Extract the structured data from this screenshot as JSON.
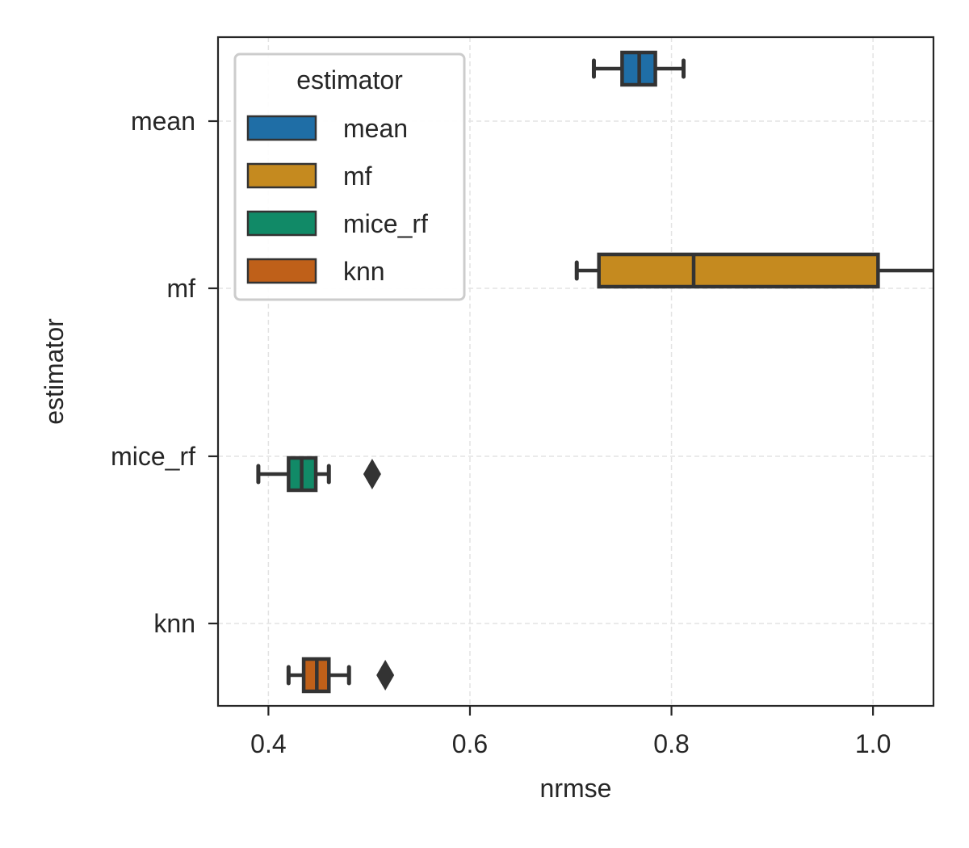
{
  "chart_data": {
    "type": "boxplot",
    "orientation": "horizontal",
    "xlabel": "nrmse",
    "ylabel": "estimator",
    "xlim": [
      0.35,
      1.06
    ],
    "xticks": [
      0.4,
      0.6,
      0.8,
      1.0
    ],
    "xtick_labels": [
      "0.4",
      "0.6",
      "0.8",
      "1.0"
    ],
    "categories": [
      "mean",
      "mf",
      "mice_rf",
      "knn"
    ],
    "grid": true,
    "legend": {
      "title": "estimator",
      "placement": "upper-left",
      "entries": [
        "mean",
        "mf",
        "mice_rf",
        "knn"
      ]
    },
    "series": [
      {
        "name": "mean",
        "category": "mean",
        "color": "#1f6ea6",
        "whislo": 0.723,
        "q1": 0.751,
        "median": 0.768,
        "q3": 0.784,
        "whishi": 0.812,
        "fliers": []
      },
      {
        "name": "mf",
        "category": "mf",
        "color": "#c58a1f",
        "whislo": 0.706,
        "q1": 0.728,
        "median": 0.822,
        "q3": 1.005,
        "whishi": 1.06,
        "fliers": []
      },
      {
        "name": "mice_rf",
        "category": "mice_rf",
        "color": "#118a67",
        "whislo": 0.39,
        "q1": 0.42,
        "median": 0.433,
        "q3": 0.447,
        "whishi": 0.46,
        "fliers": [
          0.503
        ]
      },
      {
        "name": "knn",
        "category": "knn",
        "color": "#bf6019",
        "whislo": 0.42,
        "q1": 0.435,
        "median": 0.448,
        "q3": 0.46,
        "whishi": 0.48,
        "fliers": [
          0.516
        ]
      }
    ]
  }
}
